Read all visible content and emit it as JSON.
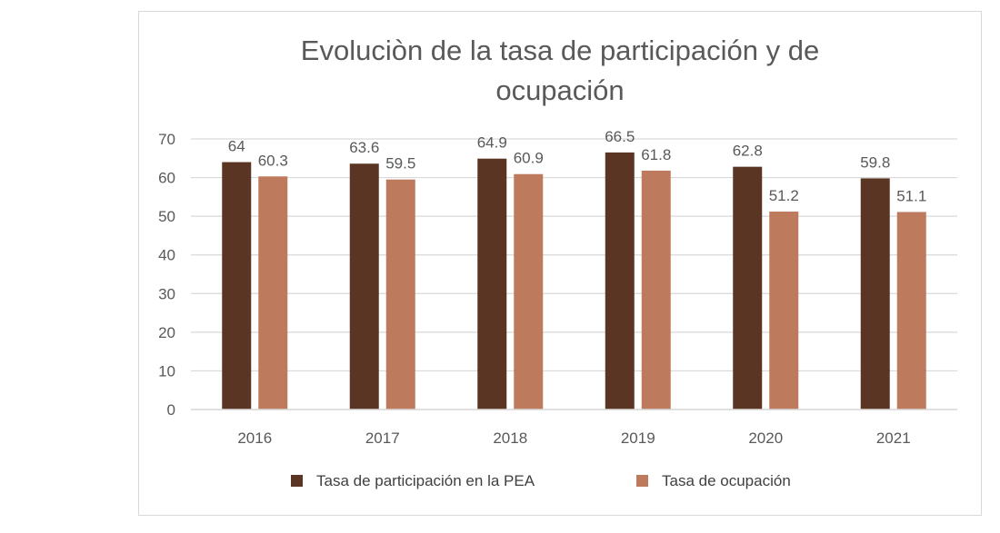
{
  "chart_data": {
    "type": "bar",
    "title_lines": [
      "Evoluciòn de la tasa de participación y de",
      "ocupación"
    ],
    "categories": [
      "2016",
      "2017",
      "2018",
      "2019",
      "2020",
      "2021"
    ],
    "series": [
      {
        "name": "Tasa de participación en la PEA",
        "color": "#5a3524",
        "values": [
          64,
          63.6,
          64.9,
          66.5,
          62.8,
          59.8
        ]
      },
      {
        "name": "Tasa de ocupación",
        "color": "#bd7a5d",
        "values": [
          60.3,
          59.5,
          60.9,
          61.8,
          51.2,
          51.1
        ]
      }
    ],
    "xlabel": "",
    "ylabel": "",
    "ylim": [
      0,
      70
    ],
    "yticks": [
      "0",
      "10",
      "20",
      "30",
      "40",
      "50",
      "60",
      "70"
    ],
    "grid": true,
    "gridline_color": "#d9d9d9",
    "legend_position": "bottom"
  }
}
